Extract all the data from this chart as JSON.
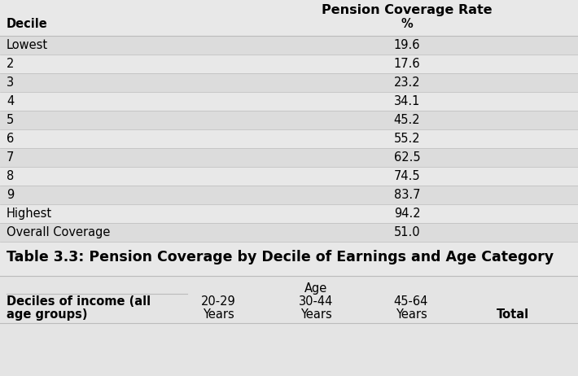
{
  "table1_title": "Pension Coverage Rate",
  "table1_col1_header": "Decile",
  "table1_col2_header": "%",
  "table1_rows": [
    [
      "Lowest",
      "19.6"
    ],
    [
      "2",
      "17.6"
    ],
    [
      "3",
      "23.2"
    ],
    [
      "4",
      "34.1"
    ],
    [
      "5",
      "45.2"
    ],
    [
      "6",
      "55.2"
    ],
    [
      "7",
      "62.5"
    ],
    [
      "8",
      "74.5"
    ],
    [
      "9",
      "83.7"
    ],
    [
      "Highest",
      "94.2"
    ],
    [
      "Overall Coverage",
      "51.0"
    ]
  ],
  "section_title": "Table 3.3: Pension Coverage by Decile of Earnings and Age Category",
  "table2_col1_header_line1": "Deciles of income (all",
  "table2_col1_header_line2": "age groups)",
  "table2_age_label": "Age",
  "table2_col2_header_line1": "20-29",
  "table2_col2_header_line2": "Years",
  "table2_col3_header_line1": "30-44",
  "table2_col3_header_line2": "Years",
  "table2_col4_header_line1": "45-64",
  "table2_col4_header_line2": "Years",
  "table2_col5_header": "Total",
  "bg_color": "#e8e8e8",
  "table2_bg": "#e4e4e4",
  "row_color_even": "#dcdcdc",
  "row_color_odd": "#e8e8e8",
  "separator_color": "#bbbbbb",
  "font_family": "DejaVu Sans",
  "title_fontsize": 11.5,
  "cell_fontsize": 10.5,
  "header_fontsize": 10.5,
  "section_title_fontsize": 12.5
}
